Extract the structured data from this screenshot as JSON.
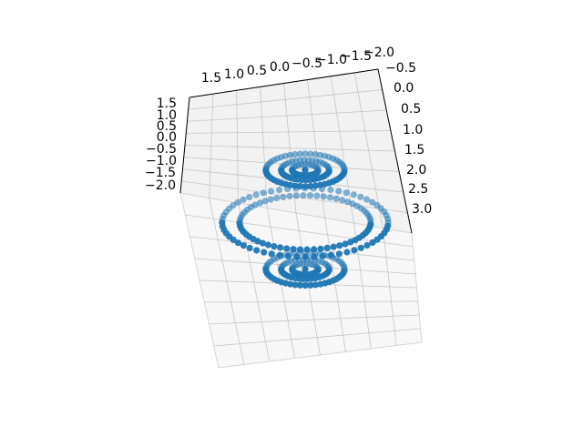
{
  "chart_data": {
    "type": "scatter3d",
    "title": "",
    "xlabel": "",
    "ylabel": "",
    "zlabel": "",
    "grid": true,
    "marker_color": "#1f77b4",
    "pane_color": "#f2f2f2",
    "axes": {
      "top": {
        "ticks": [
          "1.5",
          "1.0",
          "0.5",
          "0.0",
          "−0.5",
          "−1.0",
          "−1.5",
          "−2.0"
        ]
      },
      "left": {
        "ticks": [
          "1.5",
          "1.0",
          "0.5",
          "0.0",
          "−0.5",
          "−1.0",
          "−1.5",
          "−2.0"
        ]
      },
      "right": {
        "ticks": [
          "−0.5",
          "0.0",
          "0.5",
          "1.0",
          "1.5",
          "2.0",
          "2.5",
          "3.0"
        ]
      }
    },
    "series": [
      {
        "marker": "o",
        "description": "Points on concentric rings forming a spherical shell with two dense ring clusters",
        "rings": [
          {
            "center": [
              0,
              -1.6
            ],
            "radius": 0.3,
            "points": 24
          },
          {
            "center": [
              0,
              -1.6
            ],
            "radius": 0.55,
            "points": 36
          },
          {
            "center": [
              0,
              -1.6
            ],
            "radius": 0.9,
            "points": 48
          },
          {
            "center": [
              0,
              0.2
            ],
            "radius": 1.5,
            "points": 60
          },
          {
            "center": [
              0,
              0.2
            ],
            "radius": 1.9,
            "points": 60
          },
          {
            "center": [
              0,
              1.8
            ],
            "radius": 0.3,
            "points": 24
          },
          {
            "center": [
              0,
              1.8
            ],
            "radius": 0.55,
            "points": 36
          },
          {
            "center": [
              0,
              1.8
            ],
            "radius": 0.9,
            "points": 48
          }
        ]
      }
    ]
  }
}
